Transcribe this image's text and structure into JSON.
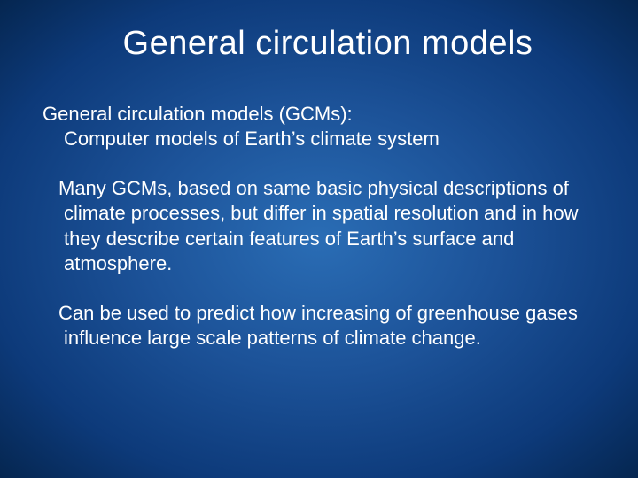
{
  "slide": {
    "title": "General circulation models",
    "line1": "General circulation models (GCMs):",
    "line2": "Computer models of Earth’s climate system",
    "para2": "Many GCMs, based on same basic physical descriptions of climate processes, but differ in spatial resolution and in how they describe certain features of Earth’s surface and atmosphere.",
    "para3": "Can be used to predict how increasing of greenhouse gases influence large scale patterns of climate change.",
    "background_gradient": {
      "center": "#2a6db5",
      "mid": "#1c5298",
      "outer": "#0d3a7a",
      "edge": "#052650"
    },
    "text_color": "#ffffff",
    "title_fontsize": 38,
    "body_fontsize": 22,
    "font_family": "Verdana"
  }
}
